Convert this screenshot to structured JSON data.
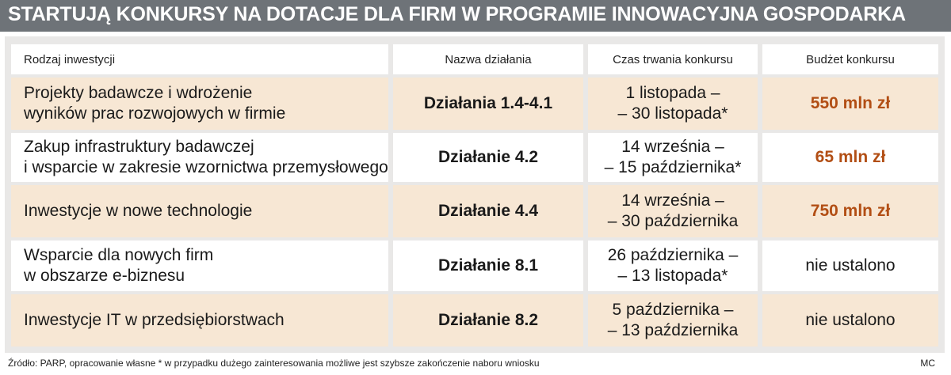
{
  "title": "STARTUJĄ KONKURSY NA DOTACJE DLA FIRM W PROGRAMIE INNOWACYJNA GOSPODARKA",
  "columns": [
    "Rodzaj inwestycji",
    "Nazwa działania",
    "Czas trwania konkursu",
    "Budżet konkursu"
  ],
  "rows": [
    {
      "type_lines": [
        "Projekty badawcze i wdrożenie",
        "wyników prac rozwojowych w firmie"
      ],
      "action": "Działania 1.4-4.1",
      "time_lines": [
        "1 listopada –",
        "– 30 listopada*"
      ],
      "budget": "550 mln zł"
    },
    {
      "type_lines": [
        "Zakup infrastruktury badawczej",
        "i wsparcie w zakresie wzornictwa przemysłowego"
      ],
      "action": "Działanie 4.2",
      "time_lines": [
        "14 września –",
        "– 15 października*"
      ],
      "budget": "65 mln zł"
    },
    {
      "type_lines": [
        "Inwestycje w nowe technologie"
      ],
      "action": "Działanie 4.4",
      "time_lines": [
        "14 września –",
        "– 30 października"
      ],
      "budget": "750 mln zł"
    },
    {
      "type_lines": [
        "Wsparcie dla nowych firm",
        "w obszarze e-biznesu"
      ],
      "action": "Działanie 8.1",
      "time_lines": [
        "26 października –",
        "– 13 listopada*"
      ],
      "budget": "nie ustalono"
    },
    {
      "type_lines": [
        "Inwestycje IT w przedsiębiorstwach"
      ],
      "action": "Działanie 8.2",
      "time_lines": [
        "5 października –",
        "– 13 października"
      ],
      "budget": "nie ustalono"
    }
  ],
  "footer": {
    "source": "Źródło: PARP, opracowanie własne   * w przypadku dużego zainteresowania możliwe jest szybsze zakończenie naboru wniosku",
    "credit": "MC"
  },
  "colors": {
    "header_bg": "#6e7378",
    "row_highlight": "#f7e7d4",
    "budget_accent": "#b24e14"
  }
}
